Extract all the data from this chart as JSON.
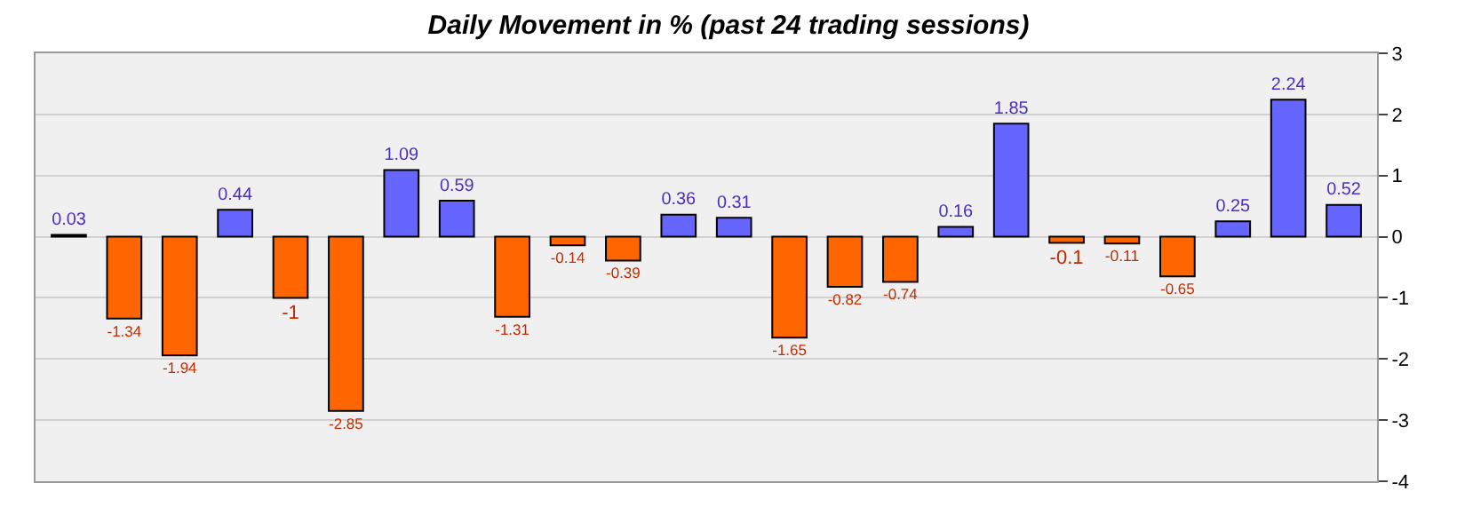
{
  "chart_data": {
    "type": "bar",
    "title": "Daily Movement in % (past 24 trading sessions)",
    "categories": [
      null,
      null,
      null,
      null,
      null,
      null,
      null,
      null,
      null,
      null,
      null,
      null,
      null,
      null,
      null,
      null,
      null,
      null,
      null,
      null,
      null,
      null,
      null,
      null
    ],
    "values": [
      0.03,
      -1.34,
      -1.94,
      0.44,
      -1,
      -2.85,
      1.09,
      0.59,
      -1.31,
      -0.14,
      -0.39,
      0.36,
      0.31,
      -1.65,
      -0.82,
      -0.74,
      0.16,
      1.85,
      -0.1,
      -0.11,
      -0.65,
      0.25,
      2.24,
      0.52
    ],
    "colors": [
      "#6666ff",
      "#ff6600",
      "#ff6600",
      "#6666ff",
      "#ff6600",
      "#ff6600",
      "#6666ff",
      "#6666ff",
      "#ff6600",
      "#ff6600",
      "#ff6600",
      "#6666ff",
      "#6666ff",
      "#ff6600",
      "#ff6600",
      "#ff6600",
      "#6666ff",
      "#6666ff",
      "#ff6600",
      "#ff6600",
      "#ff6600",
      "#6666ff",
      "#6666ff",
      "#6666ff"
    ],
    "ylim": [
      -4,
      3
    ],
    "yticks": [
      -4,
      -3,
      -2,
      -1,
      0,
      1,
      2,
      3
    ],
    "grid": "y",
    "data_labels": true
  }
}
